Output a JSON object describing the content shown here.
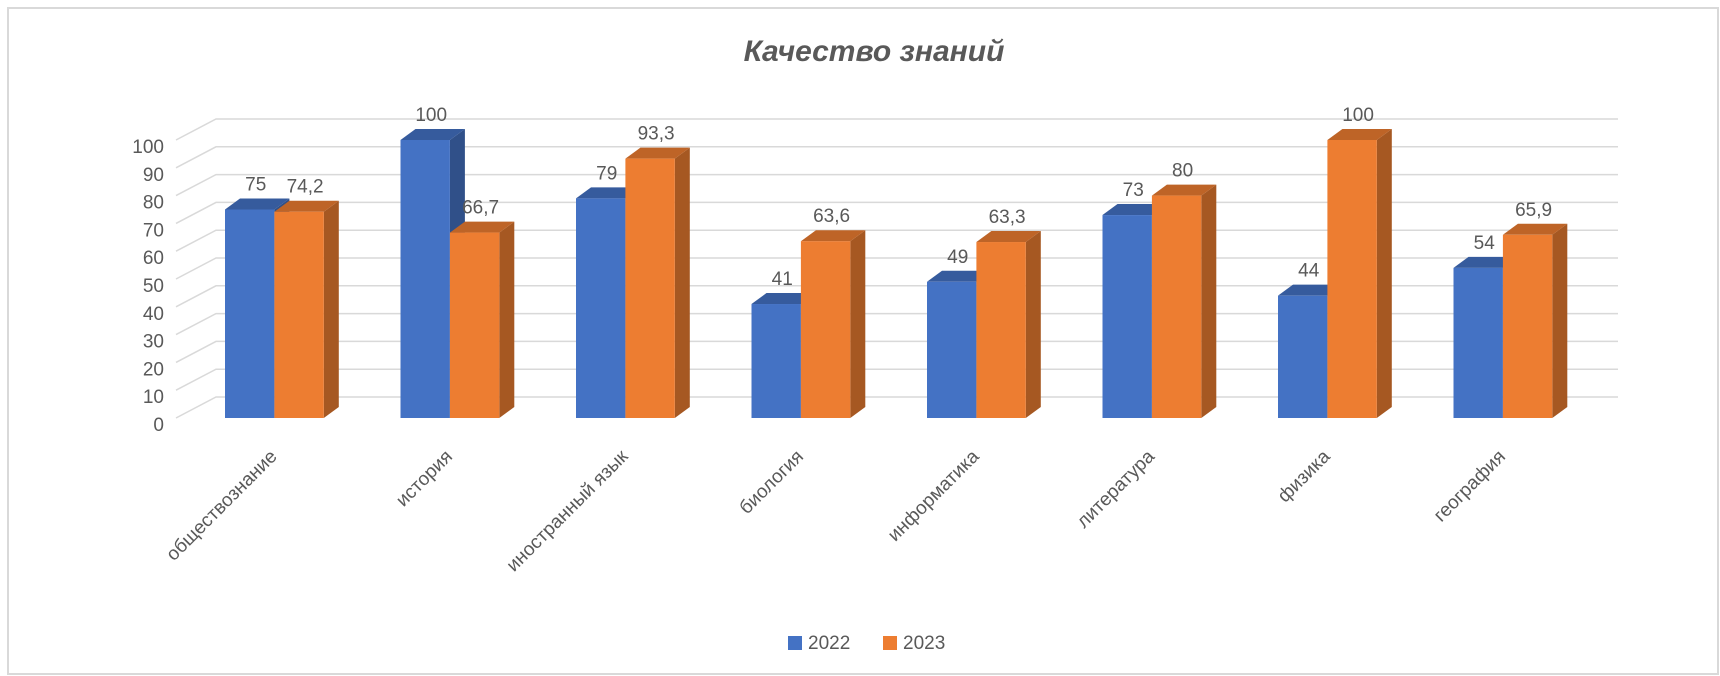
{
  "chart_data": {
    "type": "bar3d",
    "title": "Качество знаний",
    "categories": [
      "обществознание",
      "история",
      "иностранный язык",
      "биология",
      "информатика",
      "литература",
      "физика",
      "география"
    ],
    "series": [
      {
        "name": "2022",
        "color": "#4472c4",
        "values": [
          75,
          100,
          79,
          41,
          49,
          73,
          44,
          54
        ]
      },
      {
        "name": "2023",
        "color": "#ed7d31",
        "values": [
          74.2,
          66.7,
          93.3,
          63.6,
          63.3,
          80,
          100,
          65.9
        ],
        "value_labels": [
          "74,2",
          "66,7",
          "93,3",
          "63,6",
          "63,3",
          "80",
          "100",
          "65,9"
        ]
      }
    ],
    "ylim": [
      0,
      100
    ],
    "yticks": [
      0,
      10,
      20,
      30,
      40,
      50,
      60,
      70,
      80,
      90,
      100
    ],
    "grid": true,
    "legend": "bottom"
  }
}
